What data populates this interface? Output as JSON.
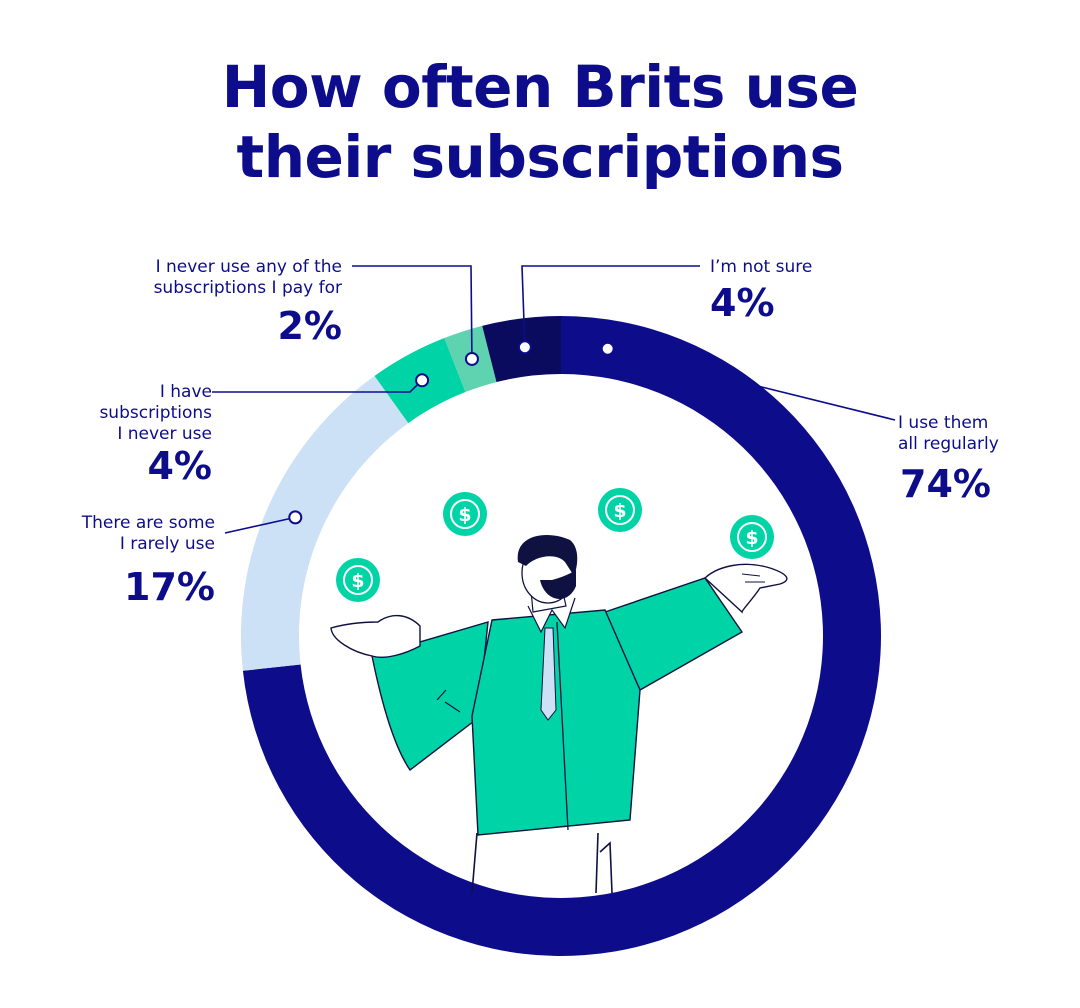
{
  "title_lines": [
    "How often Brits use",
    "their subscriptions"
  ],
  "colors": {
    "navy": "#0d0d8c",
    "teal": "#00d4a6",
    "mint": "#5fd3b0",
    "dark_navy": "#0a0a5e",
    "light_blue": "#cce0f6",
    "skin": "#ffffff",
    "hair": "#0f1240"
  },
  "icons": [
    "dollar-coin-icon",
    "person-illustration"
  ],
  "chart_data": {
    "type": "pie",
    "style": "donut",
    "title": "How often Brits use their subscriptions",
    "slices": [
      {
        "label_lines": [
          "I use them",
          "all regularly"
        ],
        "value": 74,
        "value_label": "74%",
        "color": "#0d0d8c"
      },
      {
        "label_lines": [
          "There are some",
          "I rarely use"
        ],
        "value": 17,
        "value_label": "17%",
        "color": "#cce0f6"
      },
      {
        "label_lines": [
          "I have",
          "subscriptions",
          "I never use"
        ],
        "value": 4,
        "value_label": "4%",
        "color": "#00d4a6"
      },
      {
        "label_lines": [
          "I never use any of the",
          "subscriptions I pay for"
        ],
        "value": 2,
        "value_label": "2%",
        "color": "#5fd3b0"
      },
      {
        "label_lines": [
          "I’m not sure"
        ],
        "value": 4,
        "value_label": "4%",
        "color": "#0a0a5e"
      }
    ]
  }
}
